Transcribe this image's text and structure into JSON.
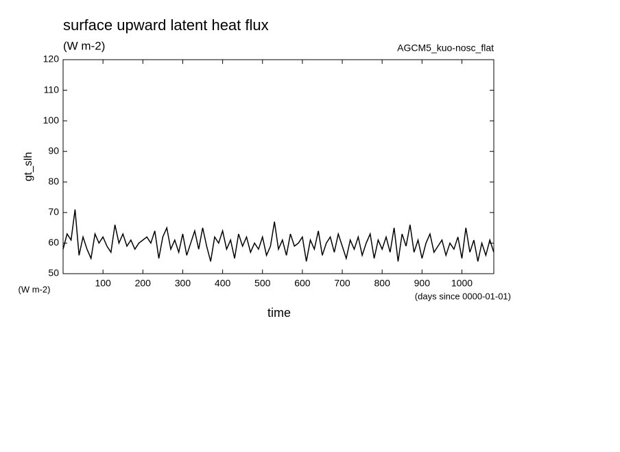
{
  "chart_data": {
    "type": "line",
    "title": "surface upward latent heat flux",
    "subtitle": "(W m-2)",
    "annotation": "AGCM5_kuo-nosc_flat",
    "ylabel": "gt_slh",
    "yunits": "(W m-2)",
    "xlabel": "time",
    "xunits": "(days since 0000-01-01)",
    "color": "#000000",
    "xlim": [
      0,
      1080
    ],
    "ylim": [
      50,
      120
    ],
    "xticks": [
      100,
      200,
      300,
      400,
      500,
      600,
      700,
      800,
      900,
      1000
    ],
    "yticks": [
      50,
      60,
      70,
      80,
      90,
      100,
      110,
      120
    ],
    "x": [
      0,
      10,
      20,
      30,
      40,
      50,
      60,
      70,
      80,
      90,
      100,
      110,
      120,
      130,
      140,
      150,
      160,
      170,
      180,
      190,
      200,
      210,
      220,
      230,
      240,
      250,
      260,
      270,
      280,
      290,
      300,
      310,
      320,
      330,
      340,
      350,
      360,
      370,
      380,
      390,
      400,
      410,
      420,
      430,
      440,
      450,
      460,
      470,
      480,
      490,
      500,
      510,
      520,
      530,
      540,
      550,
      560,
      570,
      580,
      590,
      600,
      610,
      620,
      630,
      640,
      650,
      660,
      670,
      680,
      690,
      700,
      710,
      720,
      730,
      740,
      750,
      760,
      770,
      780,
      790,
      800,
      810,
      820,
      830,
      840,
      850,
      860,
      870,
      880,
      890,
      900,
      910,
      920,
      930,
      940,
      950,
      960,
      970,
      980,
      990,
      1000,
      1010,
      1020,
      1030,
      1040,
      1050,
      1060,
      1070,
      1080
    ],
    "values": [
      58,
      63,
      61,
      71,
      56,
      62,
      58,
      55,
      63,
      60,
      62,
      59,
      57,
      66,
      60,
      63,
      59,
      61,
      58,
      60,
      61,
      62,
      60,
      64,
      55,
      62,
      65,
      58,
      61,
      57,
      63,
      56,
      60,
      64,
      58,
      65,
      59,
      54,
      62,
      60,
      64,
      58,
      61,
      55,
      63,
      59,
      62,
      57,
      60,
      58,
      62,
      56,
      59,
      67,
      58,
      61,
      56,
      63,
      59,
      60,
      62,
      54,
      61,
      58,
      64,
      56,
      60,
      62,
      57,
      63,
      59,
      55,
      61,
      58,
      62,
      56,
      60,
      63,
      55,
      61,
      58,
      62,
      57,
      65,
      54,
      63,
      59,
      66,
      57,
      61,
      55,
      60,
      63,
      57,
      59,
      61,
      56,
      60,
      58,
      62,
      55,
      65,
      57,
      61,
      54,
      60,
      56,
      61,
      57
    ]
  }
}
